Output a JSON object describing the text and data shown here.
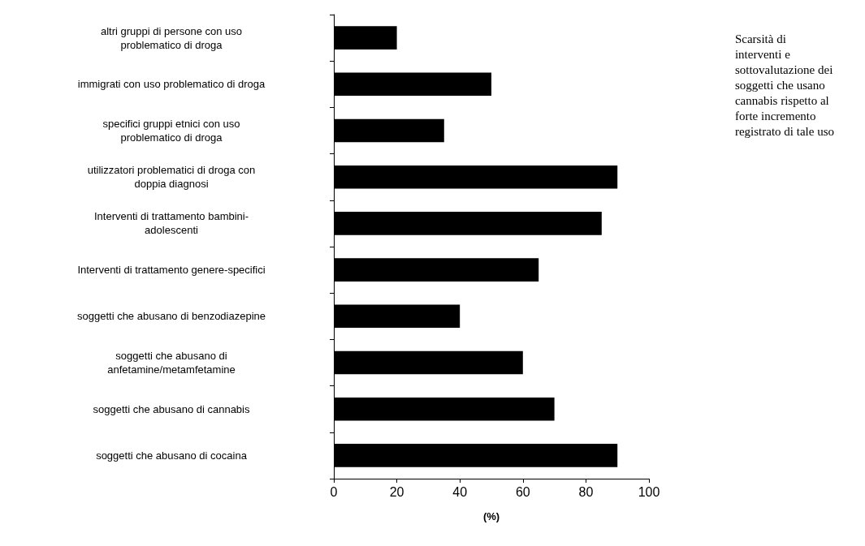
{
  "chart_data": {
    "type": "bar",
    "orientation": "horizontal",
    "xlabel": "(%)",
    "categories": [
      "altri gruppi di persone con uso\nproblematico di droga",
      "immigrati con uso problematico di droga",
      "specifici gruppi etnici con uso\nproblematico di droga",
      "utilizzatori problematici di droga con\ndoppia diagnosi",
      "Interventi di trattamento bambini-\nadolescenti",
      "Interventi di trattamento genere-specifici",
      "soggetti che abusano di benzodiazepine",
      "soggetti che abusano di\nanfetamine/metamfetamine",
      "soggetti che abusano di cannabis",
      "soggetti che abusano di cocaina"
    ],
    "values": [
      20,
      50,
      35,
      90,
      85,
      65,
      40,
      60,
      70,
      90
    ],
    "color": "#000000",
    "xlim": [
      0,
      100
    ],
    "xticks": [
      0,
      20,
      40,
      60,
      80,
      100
    ],
    "grid": false,
    "annotations": [
      "Scarsità di\ninterventi e\nsottovalutazione dei\nsoggetti che usano\ncannabis rispetto al\nforte incremento\nregistrato di tale uso"
    ]
  }
}
